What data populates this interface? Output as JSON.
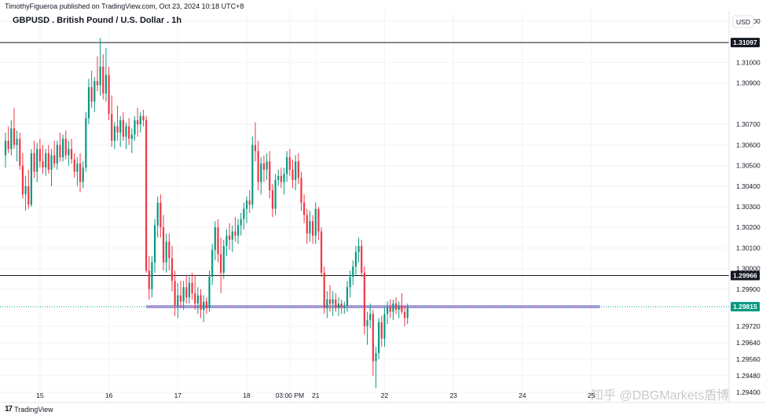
{
  "publish_line": "TimothyFigueroa published on TradingView.com, Oct 23, 2024 10:18 UTC+8",
  "footer_logo_text": "TradingView",
  "watermark_text": "知乎 @DBGMarkets盾博",
  "chart_data": {
    "type": "candlestick",
    "title": "GBPUSD . British Pound / U.S. Dollar . 1h",
    "currency_label": "USD",
    "ylim": [
      1.2935,
      1.3125
    ],
    "y_ticks": [
      1.294,
      1.2948,
      1.2956,
      1.2964,
      1.2972,
      1.299,
      1.3,
      1.301,
      1.302,
      1.303,
      1.304,
      1.305,
      1.306,
      1.307,
      1.309,
      1.31,
      1.312
    ],
    "y_tick_labels": [
      "1.29400",
      "1.29480",
      "1.29560",
      "1.29640",
      "1.29720",
      "1.29900",
      "1.30000",
      "1.30100",
      "1.30200",
      "1.30300",
      "1.30400",
      "1.30500",
      "1.30600",
      "1.30700",
      "1.30900",
      "1.31000",
      "1.31200"
    ],
    "x_ticks": [
      {
        "label": "15",
        "index": 12
      },
      {
        "label": "16",
        "index": 36
      },
      {
        "label": "17",
        "index": 60
      },
      {
        "label": "18",
        "index": 84
      },
      {
        "label": "03:00 PM",
        "index": 99
      },
      {
        "label": "21",
        "index": 108
      },
      {
        "label": "22",
        "index": 132
      },
      {
        "label": "23",
        "index": 156
      },
      {
        "label": "24",
        "index": 180
      },
      {
        "label": "25",
        "index": 204
      }
    ],
    "bar_count_span": 258,
    "colors": {
      "up": "#089981",
      "down": "#f23645",
      "zone": "#b39ddb",
      "current": "#089981",
      "level": "#131722"
    },
    "horizontal_levels": [
      {
        "price": 1.31097,
        "label": "1.31097"
      },
      {
        "price": 1.29966,
        "label": "1.29966"
      }
    ],
    "current_price": {
      "price": 1.29815,
      "label": "1.29815"
    },
    "support_zone": {
      "price": 1.29815,
      "start_index": 49,
      "end_index": 207
    },
    "candles": [
      {
        "o": 1.3055,
        "h": 1.3066,
        "l": 1.3049,
        "c": 1.3062
      },
      {
        "o": 1.3062,
        "h": 1.3069,
        "l": 1.3056,
        "c": 1.3058
      },
      {
        "o": 1.3058,
        "h": 1.3072,
        "l": 1.3055,
        "c": 1.3068
      },
      {
        "o": 1.3068,
        "h": 1.3078,
        "l": 1.3058,
        "c": 1.306
      },
      {
        "o": 1.306,
        "h": 1.3067,
        "l": 1.3052,
        "c": 1.3063
      },
      {
        "o": 1.3063,
        "h": 1.3066,
        "l": 1.3048,
        "c": 1.305
      },
      {
        "o": 1.305,
        "h": 1.3056,
        "l": 1.3034,
        "c": 1.3036
      },
      {
        "o": 1.3036,
        "h": 1.3045,
        "l": 1.3028,
        "c": 1.304
      },
      {
        "o": 1.304,
        "h": 1.3048,
        "l": 1.3029,
        "c": 1.3031
      },
      {
        "o": 1.3031,
        "h": 1.3058,
        "l": 1.303,
        "c": 1.3056
      },
      {
        "o": 1.3056,
        "h": 1.3062,
        "l": 1.3044,
        "c": 1.3047
      },
      {
        "o": 1.3047,
        "h": 1.3061,
        "l": 1.3042,
        "c": 1.3058
      },
      {
        "o": 1.3058,
        "h": 1.3063,
        "l": 1.3049,
        "c": 1.3052
      },
      {
        "o": 1.3052,
        "h": 1.306,
        "l": 1.3046,
        "c": 1.3049
      },
      {
        "o": 1.3049,
        "h": 1.3058,
        "l": 1.3045,
        "c": 1.3056
      },
      {
        "o": 1.3056,
        "h": 1.306,
        "l": 1.3046,
        "c": 1.3048
      },
      {
        "o": 1.3048,
        "h": 1.3058,
        "l": 1.304,
        "c": 1.3055
      },
      {
        "o": 1.3055,
        "h": 1.3062,
        "l": 1.3049,
        "c": 1.3051
      },
      {
        "o": 1.3051,
        "h": 1.3062,
        "l": 1.3048,
        "c": 1.306
      },
      {
        "o": 1.306,
        "h": 1.3066,
        "l": 1.3052,
        "c": 1.3054
      },
      {
        "o": 1.3054,
        "h": 1.3065,
        "l": 1.3052,
        "c": 1.3063
      },
      {
        "o": 1.3063,
        "h": 1.3067,
        "l": 1.3053,
        "c": 1.3055
      },
      {
        "o": 1.3055,
        "h": 1.3062,
        "l": 1.305,
        "c": 1.3058
      },
      {
        "o": 1.3058,
        "h": 1.3063,
        "l": 1.3051,
        "c": 1.3053
      },
      {
        "o": 1.3053,
        "h": 1.3056,
        "l": 1.3044,
        "c": 1.3047
      },
      {
        "o": 1.3047,
        "h": 1.3054,
        "l": 1.304,
        "c": 1.3051
      },
      {
        "o": 1.3051,
        "h": 1.3056,
        "l": 1.3037,
        "c": 1.3042
      },
      {
        "o": 1.3042,
        "h": 1.3052,
        "l": 1.3039,
        "c": 1.3049
      },
      {
        "o": 1.3049,
        "h": 1.3076,
        "l": 1.3047,
        "c": 1.3073
      },
      {
        "o": 1.3073,
        "h": 1.3092,
        "l": 1.307,
        "c": 1.3088
      },
      {
        "o": 1.3088,
        "h": 1.3096,
        "l": 1.3078,
        "c": 1.3081
      },
      {
        "o": 1.3081,
        "h": 1.3093,
        "l": 1.3076,
        "c": 1.3091
      },
      {
        "o": 1.3091,
        "h": 1.3103,
        "l": 1.3086,
        "c": 1.3089
      },
      {
        "o": 1.3089,
        "h": 1.3112,
        "l": 1.3084,
        "c": 1.3098
      },
      {
        "o": 1.3098,
        "h": 1.3104,
        "l": 1.3082,
        "c": 1.3085
      },
      {
        "o": 1.3085,
        "h": 1.3107,
        "l": 1.3081,
        "c": 1.3094
      },
      {
        "o": 1.3094,
        "h": 1.3098,
        "l": 1.3072,
        "c": 1.3075
      },
      {
        "o": 1.3075,
        "h": 1.3084,
        "l": 1.3059,
        "c": 1.3062
      },
      {
        "o": 1.3062,
        "h": 1.3071,
        "l": 1.3058,
        "c": 1.3069
      },
      {
        "o": 1.3069,
        "h": 1.3079,
        "l": 1.3062,
        "c": 1.3066
      },
      {
        "o": 1.3066,
        "h": 1.3074,
        "l": 1.3059,
        "c": 1.3072
      },
      {
        "o": 1.3072,
        "h": 1.3076,
        "l": 1.3062,
        "c": 1.3064
      },
      {
        "o": 1.3064,
        "h": 1.3071,
        "l": 1.3058,
        "c": 1.3069
      },
      {
        "o": 1.3069,
        "h": 1.3073,
        "l": 1.306,
        "c": 1.3063
      },
      {
        "o": 1.3063,
        "h": 1.3068,
        "l": 1.3056,
        "c": 1.3065
      },
      {
        "o": 1.3065,
        "h": 1.3074,
        "l": 1.3062,
        "c": 1.3072
      },
      {
        "o": 1.3072,
        "h": 1.3078,
        "l": 1.3064,
        "c": 1.307
      },
      {
        "o": 1.307,
        "h": 1.3076,
        "l": 1.3066,
        "c": 1.3074
      },
      {
        "o": 1.3074,
        "h": 1.3077,
        "l": 1.3069,
        "c": 1.3072
      },
      {
        "o": 1.3072,
        "h": 1.3074,
        "l": 1.2998,
        "c": 1.2999
      },
      {
        "o": 1.2999,
        "h": 1.3006,
        "l": 1.2985,
        "c": 1.299
      },
      {
        "o": 1.299,
        "h": 1.3006,
        "l": 1.2986,
        "c": 1.3003
      },
      {
        "o": 1.3003,
        "h": 1.3024,
        "l": 1.2998,
        "c": 1.3021
      },
      {
        "o": 1.3021,
        "h": 1.3035,
        "l": 1.3015,
        "c": 1.3032
      },
      {
        "o": 1.3032,
        "h": 1.3036,
        "l": 1.3015,
        "c": 1.302
      },
      {
        "o": 1.302,
        "h": 1.3026,
        "l": 1.2999,
        "c": 1.3003
      },
      {
        "o": 1.3003,
        "h": 1.3017,
        "l": 1.2998,
        "c": 1.3013
      },
      {
        "o": 1.3013,
        "h": 1.3017,
        "l": 1.2999,
        "c": 1.3005
      },
      {
        "o": 1.3005,
        "h": 1.3011,
        "l": 1.2989,
        "c": 1.2994
      },
      {
        "o": 1.2994,
        "h": 1.2999,
        "l": 1.2977,
        "c": 1.2982
      },
      {
        "o": 1.2982,
        "h": 1.2993,
        "l": 1.2976,
        "c": 1.2987
      },
      {
        "o": 1.2987,
        "h": 1.2994,
        "l": 1.2981,
        "c": 1.2984
      },
      {
        "o": 1.2984,
        "h": 1.2994,
        "l": 1.298,
        "c": 1.2991
      },
      {
        "o": 1.2991,
        "h": 1.2997,
        "l": 1.2983,
        "c": 1.2986
      },
      {
        "o": 1.2986,
        "h": 1.2996,
        "l": 1.2983,
        "c": 1.2993
      },
      {
        "o": 1.2993,
        "h": 1.2998,
        "l": 1.2985,
        "c": 1.2988
      },
      {
        "o": 1.2988,
        "h": 1.2997,
        "l": 1.298,
        "c": 1.2983
      },
      {
        "o": 1.2983,
        "h": 1.2991,
        "l": 1.2978,
        "c": 1.2987
      },
      {
        "o": 1.2987,
        "h": 1.299,
        "l": 1.2976,
        "c": 1.298
      },
      {
        "o": 1.298,
        "h": 1.2987,
        "l": 1.2974,
        "c": 1.2984
      },
      {
        "o": 1.2984,
        "h": 1.2986,
        "l": 1.2978,
        "c": 1.2981
      },
      {
        "o": 1.2981,
        "h": 1.2999,
        "l": 1.2979,
        "c": 1.2996
      },
      {
        "o": 1.2996,
        "h": 1.3012,
        "l": 1.2992,
        "c": 1.3009
      },
      {
        "o": 1.3009,
        "h": 1.3023,
        "l": 1.3004,
        "c": 1.302
      },
      {
        "o": 1.302,
        "h": 1.3024,
        "l": 1.3003,
        "c": 1.3007
      },
      {
        "o": 1.3007,
        "h": 1.3015,
        "l": 1.2988,
        "c": 1.2998
      },
      {
        "o": 1.2998,
        "h": 1.3014,
        "l": 1.2995,
        "c": 1.3011
      },
      {
        "o": 1.3011,
        "h": 1.3019,
        "l": 1.3006,
        "c": 1.3016
      },
      {
        "o": 1.3016,
        "h": 1.3022,
        "l": 1.3009,
        "c": 1.3014
      },
      {
        "o": 1.3014,
        "h": 1.3021,
        "l": 1.3008,
        "c": 1.3018
      },
      {
        "o": 1.3018,
        "h": 1.3025,
        "l": 1.3013,
        "c": 1.3016
      },
      {
        "o": 1.3016,
        "h": 1.3024,
        "l": 1.3012,
        "c": 1.3021
      },
      {
        "o": 1.3021,
        "h": 1.3027,
        "l": 1.3016,
        "c": 1.3024
      },
      {
        "o": 1.3024,
        "h": 1.3032,
        "l": 1.3019,
        "c": 1.3029
      },
      {
        "o": 1.3029,
        "h": 1.3035,
        "l": 1.3022,
        "c": 1.3033
      },
      {
        "o": 1.3033,
        "h": 1.3038,
        "l": 1.3027,
        "c": 1.3031
      },
      {
        "o": 1.3031,
        "h": 1.3064,
        "l": 1.3029,
        "c": 1.306
      },
      {
        "o": 1.306,
        "h": 1.3071,
        "l": 1.3052,
        "c": 1.3057
      },
      {
        "o": 1.3057,
        "h": 1.3062,
        "l": 1.3038,
        "c": 1.3042
      },
      {
        "o": 1.3042,
        "h": 1.3054,
        "l": 1.3036,
        "c": 1.3051
      },
      {
        "o": 1.3051,
        "h": 1.3055,
        "l": 1.3042,
        "c": 1.3048
      },
      {
        "o": 1.3048,
        "h": 1.3056,
        "l": 1.3043,
        "c": 1.3052
      },
      {
        "o": 1.3052,
        "h": 1.3057,
        "l": 1.3034,
        "c": 1.3038
      },
      {
        "o": 1.3038,
        "h": 1.3041,
        "l": 1.3025,
        "c": 1.3029
      },
      {
        "o": 1.3029,
        "h": 1.3046,
        "l": 1.3026,
        "c": 1.3043
      },
      {
        "o": 1.3043,
        "h": 1.3048,
        "l": 1.304,
        "c": 1.3045
      },
      {
        "o": 1.3045,
        "h": 1.3049,
        "l": 1.3039,
        "c": 1.3042
      },
      {
        "o": 1.3042,
        "h": 1.3049,
        "l": 1.3036,
        "c": 1.3046
      },
      {
        "o": 1.3046,
        "h": 1.3057,
        "l": 1.3042,
        "c": 1.3054
      },
      {
        "o": 1.3054,
        "h": 1.3058,
        "l": 1.3045,
        "c": 1.3048
      },
      {
        "o": 1.3048,
        "h": 1.3053,
        "l": 1.3039,
        "c": 1.3043
      },
      {
        "o": 1.3043,
        "h": 1.3055,
        "l": 1.3038,
        "c": 1.3052
      },
      {
        "o": 1.3052,
        "h": 1.3056,
        "l": 1.3041,
        "c": 1.3044
      },
      {
        "o": 1.3044,
        "h": 1.3047,
        "l": 1.3028,
        "c": 1.3032
      },
      {
        "o": 1.3032,
        "h": 1.3036,
        "l": 1.3022,
        "c": 1.3026
      },
      {
        "o": 1.3026,
        "h": 1.3029,
        "l": 1.3012,
        "c": 1.3017
      },
      {
        "o": 1.3017,
        "h": 1.3028,
        "l": 1.3013,
        "c": 1.3023
      },
      {
        "o": 1.3023,
        "h": 1.3026,
        "l": 1.3012,
        "c": 1.3016
      },
      {
        "o": 1.3016,
        "h": 1.3032,
        "l": 1.3012,
        "c": 1.3029
      },
      {
        "o": 1.3029,
        "h": 1.303,
        "l": 1.3014,
        "c": 1.3018
      },
      {
        "o": 1.3018,
        "h": 1.302,
        "l": 1.2996,
        "c": 1.2998
      },
      {
        "o": 1.2998,
        "h": 1.3001,
        "l": 1.2978,
        "c": 1.2981
      },
      {
        "o": 1.2981,
        "h": 1.2989,
        "l": 1.2976,
        "c": 1.2985
      },
      {
        "o": 1.2985,
        "h": 1.2992,
        "l": 1.2979,
        "c": 1.2983
      },
      {
        "o": 1.2983,
        "h": 1.2989,
        "l": 1.2977,
        "c": 1.2985
      },
      {
        "o": 1.2985,
        "h": 1.2988,
        "l": 1.2979,
        "c": 1.2981
      },
      {
        "o": 1.2981,
        "h": 1.2986,
        "l": 1.2977,
        "c": 1.2983
      },
      {
        "o": 1.2983,
        "h": 1.2985,
        "l": 1.2978,
        "c": 1.2981
      },
      {
        "o": 1.2981,
        "h": 1.2984,
        "l": 1.2978,
        "c": 1.2982
      },
      {
        "o": 1.2982,
        "h": 1.2994,
        "l": 1.2979,
        "c": 1.2991
      },
      {
        "o": 1.2991,
        "h": 1.2999,
        "l": 1.2986,
        "c": 1.2996
      },
      {
        "o": 1.2996,
        "h": 1.3004,
        "l": 1.2992,
        "c": 1.3001
      },
      {
        "o": 1.3001,
        "h": 1.3011,
        "l": 1.2997,
        "c": 1.3008
      },
      {
        "o": 1.3008,
        "h": 1.3015,
        "l": 1.3003,
        "c": 1.3011
      },
      {
        "o": 1.3011,
        "h": 1.3014,
        "l": 1.2996,
        "c": 1.2998
      },
      {
        "o": 1.2998,
        "h": 1.3001,
        "l": 1.2968,
        "c": 1.2972
      },
      {
        "o": 1.2972,
        "h": 1.2979,
        "l": 1.2963,
        "c": 1.2975
      },
      {
        "o": 1.2975,
        "h": 1.2983,
        "l": 1.2971,
        "c": 1.2978
      },
      {
        "o": 1.2978,
        "h": 1.298,
        "l": 1.2948,
        "c": 1.2955
      },
      {
        "o": 1.2955,
        "h": 1.2962,
        "l": 1.2942,
        "c": 1.2959
      },
      {
        "o": 1.2959,
        "h": 1.2976,
        "l": 1.2956,
        "c": 1.2974
      },
      {
        "o": 1.2974,
        "h": 1.2977,
        "l": 1.2962,
        "c": 1.2966
      },
      {
        "o": 1.2966,
        "h": 1.2981,
        "l": 1.2962,
        "c": 1.2978
      },
      {
        "o": 1.2978,
        "h": 1.2984,
        "l": 1.2973,
        "c": 1.2981
      },
      {
        "o": 1.2981,
        "h": 1.2985,
        "l": 1.2976,
        "c": 1.2979
      },
      {
        "o": 1.2979,
        "h": 1.2985,
        "l": 1.2975,
        "c": 1.2983
      },
      {
        "o": 1.2983,
        "h": 1.2986,
        "l": 1.2978,
        "c": 1.298
      },
      {
        "o": 1.298,
        "h": 1.2984,
        "l": 1.2976,
        "c": 1.2982
      },
      {
        "o": 1.2982,
        "h": 1.2988,
        "l": 1.2978,
        "c": 1.2979
      },
      {
        "o": 1.2979,
        "h": 1.2982,
        "l": 1.2972,
        "c": 1.2976
      },
      {
        "o": 1.2976,
        "h": 1.2983,
        "l": 1.2973,
        "c": 1.2981
      }
    ]
  }
}
